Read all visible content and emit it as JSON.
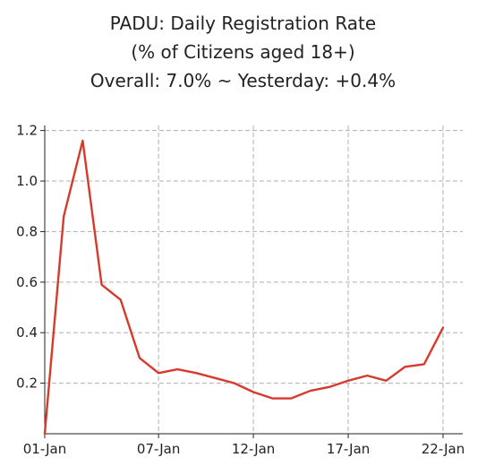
{
  "chart_data": {
    "type": "line",
    "title": "PADU: Daily Registration Rate",
    "subtitle_lines": [
      "(% of Citizens aged 18+)",
      "Overall: 7.0% ~ Yesterday: +0.4%"
    ],
    "xlabel": "",
    "ylabel": "",
    "x_range": [
      "01-Jan",
      "22-Jan"
    ],
    "ylim": [
      0,
      1.22
    ],
    "grid": true,
    "x_ticks": [
      "01-Jan",
      "07-Jan",
      "12-Jan",
      "17-Jan",
      "22-Jan"
    ],
    "x_tick_index": [
      0,
      6,
      11,
      16,
      21
    ],
    "y_ticks": [
      "0.2",
      "0.4",
      "0.6",
      "0.8",
      "1.0",
      "1.2"
    ],
    "y_tick_values": [
      0.2,
      0.4,
      0.6,
      0.8,
      1.0,
      1.2
    ],
    "series": [
      {
        "color": "#d63a2c",
        "values": [
          0.0,
          0.86,
          1.16,
          0.59,
          0.53,
          0.3,
          0.24,
          0.255,
          0.24,
          0.22,
          0.2,
          0.165,
          0.14,
          0.14,
          0.17,
          0.185,
          0.21,
          0.23,
          0.21,
          0.265,
          0.275,
          0.42
        ]
      }
    ]
  }
}
